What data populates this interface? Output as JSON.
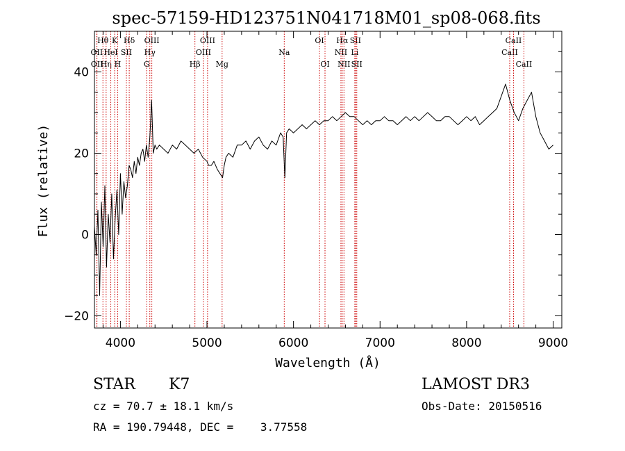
{
  "chart_data": {
    "type": "line",
    "title": "spec-57159-HD123751N041718M01_sp08-068.fits",
    "xlabel": "Wavelength (Å)",
    "ylabel": "Flux (relative)",
    "xlim": [
      3700,
      9100
    ],
    "ylim": [
      -23,
      50
    ],
    "xticks": [
      4000,
      5000,
      6000,
      7000,
      8000,
      9000
    ],
    "yticks": [
      -20,
      0,
      20,
      40
    ],
    "grid": false,
    "series": [
      {
        "name": "flux",
        "x": [
          3700,
          3720,
          3740,
          3760,
          3780,
          3800,
          3820,
          3840,
          3860,
          3880,
          3900,
          3920,
          3940,
          3960,
          3980,
          4000,
          4020,
          4040,
          4060,
          4080,
          4100,
          4120,
          4140,
          4160,
          4180,
          4200,
          4220,
          4240,
          4260,
          4280,
          4300,
          4320,
          4340,
          4360,
          4380,
          4400,
          4420,
          4450,
          4500,
          4550,
          4600,
          4650,
          4700,
          4750,
          4800,
          4850,
          4900,
          4950,
          5000,
          5020,
          5050,
          5080,
          5120,
          5150,
          5180,
          5200,
          5220,
          5250,
          5300,
          5350,
          5400,
          5450,
          5500,
          5550,
          5600,
          5650,
          5700,
          5750,
          5800,
          5850,
          5880,
          5900,
          5920,
          5950,
          6000,
          6050,
          6100,
          6150,
          6200,
          6250,
          6300,
          6350,
          6400,
          6450,
          6500,
          6550,
          6600,
          6650,
          6700,
          6750,
          6800,
          6850,
          6900,
          6950,
          7000,
          7050,
          7100,
          7150,
          7200,
          7250,
          7300,
          7350,
          7400,
          7450,
          7500,
          7550,
          7600,
          7650,
          7700,
          7750,
          7800,
          7850,
          7900,
          7950,
          8000,
          8050,
          8100,
          8150,
          8200,
          8250,
          8300,
          8350,
          8400,
          8450,
          8500,
          8550,
          8600,
          8650,
          8700,
          8750,
          8800,
          8850,
          8900,
          8950,
          9000
        ],
        "y": [
          2,
          -5,
          6,
          -15,
          8,
          -3,
          12,
          -8,
          5,
          -2,
          10,
          -6,
          4,
          11,
          0,
          15,
          5,
          13,
          9,
          12,
          17,
          16,
          14,
          18,
          15,
          19,
          17,
          20,
          21,
          18,
          22,
          19,
          24,
          33,
          20,
          22,
          21,
          22,
          21,
          20,
          22,
          21,
          23,
          22,
          21,
          20,
          21,
          19,
          18,
          17,
          17,
          18,
          16,
          15,
          14,
          17,
          19,
          20,
          19,
          22,
          22,
          23,
          21,
          23,
          24,
          22,
          21,
          23,
          22,
          25,
          24,
          14,
          25,
          26,
          25,
          26,
          27,
          26,
          27,
          28,
          27,
          28,
          28,
          29,
          28,
          29,
          30,
          29,
          29,
          28,
          27,
          28,
          27,
          28,
          28,
          29,
          28,
          28,
          27,
          28,
          29,
          28,
          29,
          28,
          29,
          30,
          29,
          28,
          28,
          29,
          29,
          28,
          27,
          28,
          29,
          28,
          29,
          27,
          28,
          29,
          30,
          31,
          34,
          37,
          33,
          30,
          28,
          31,
          33,
          35,
          29,
          25,
          23,
          21,
          22
        ]
      }
    ],
    "line_markers": [
      {
        "label": "Hθ",
        "wavelength": 3798,
        "row": 1
      },
      {
        "label": "OII",
        "wavelength": 3727,
        "row": 2
      },
      {
        "label": "OII",
        "wavelength": 3729,
        "row": 3
      },
      {
        "label": "Hη",
        "wavelength": 3835,
        "row": 3
      },
      {
        "label": "HeI",
        "wavelength": 3889,
        "row": 2
      },
      {
        "label": "K",
        "wavelength": 3934,
        "row": 1
      },
      {
        "label": "H",
        "wavelength": 3968,
        "row": 3
      },
      {
        "label": "SII",
        "wavelength": 4069,
        "row": 2
      },
      {
        "label": "Hδ",
        "wavelength": 4102,
        "row": 1
      },
      {
        "label": "Hγ",
        "wavelength": 4340,
        "row": 2
      },
      {
        "label": "G",
        "wavelength": 4304,
        "row": 3
      },
      {
        "label": "OIII",
        "wavelength": 4363,
        "row": 1
      },
      {
        "label": "Hβ",
        "wavelength": 4861,
        "row": 3
      },
      {
        "label": "OIII",
        "wavelength": 4959,
        "row": 2
      },
      {
        "label": "OIII",
        "wavelength": 5007,
        "row": 1
      },
      {
        "label": "Mg",
        "wavelength": 5175,
        "row": 3
      },
      {
        "label": "Na",
        "wavelength": 5893,
        "row": 2
      },
      {
        "label": "OI",
        "wavelength": 6300,
        "row": 1
      },
      {
        "label": "OI",
        "wavelength": 6364,
        "row": 3
      },
      {
        "label": "NII",
        "wavelength": 6548,
        "row": 2
      },
      {
        "label": "Hα",
        "wavelength": 6563,
        "row": 1
      },
      {
        "label": "NII",
        "wavelength": 6583,
        "row": 3
      },
      {
        "label": "SII",
        "wavelength": 6716,
        "row": 1
      },
      {
        "label": "Li",
        "wavelength": 6708,
        "row": 2
      },
      {
        "label": "SII",
        "wavelength": 6731,
        "row": 3
      },
      {
        "label": "CaII",
        "wavelength": 8498,
        "row": 2
      },
      {
        "label": "CaII",
        "wavelength": 8542,
        "row": 1
      },
      {
        "label": "CaII",
        "wavelength": 8662,
        "row": 3
      }
    ],
    "marker_color": "#cc0000"
  },
  "info": {
    "object_class": "STAR",
    "subclass": "K7",
    "survey": "LAMOST DR3",
    "cz": "cz = 70.7 ± 18.1 km/s",
    "obs_date": "Obs-Date: 20150516",
    "coords": "RA = 190.79448, DEC =    3.77558"
  }
}
